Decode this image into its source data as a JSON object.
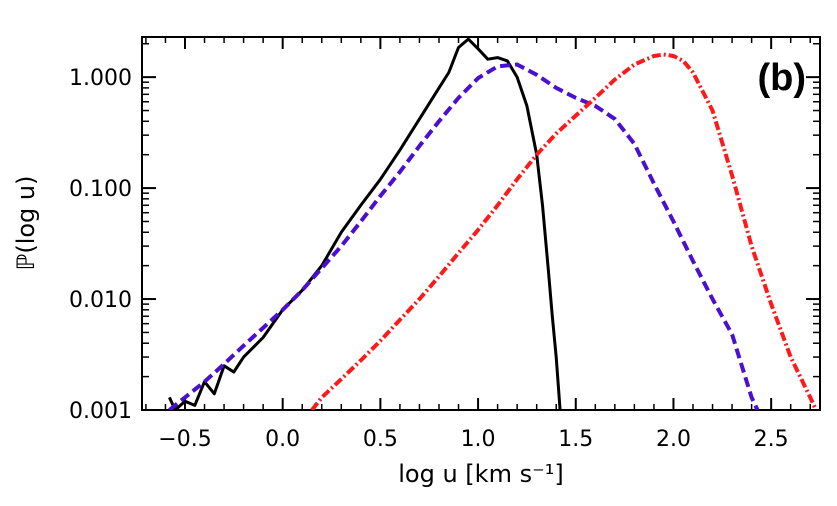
{
  "chart_data": {
    "type": "line",
    "title": "",
    "panel_label": "(b)",
    "xlabel": "log u [km s⁻¹]",
    "ylabel": "ℙ(log u)",
    "xlim": [
      -0.72,
      2.75
    ],
    "ylim": [
      0.001,
      2.3
    ],
    "yscale": "log",
    "xticks": [
      -0.5,
      0.0,
      0.5,
      1.0,
      1.5,
      2.0,
      2.5
    ],
    "xtick_labels": [
      "−0.5",
      "0.0",
      "0.5",
      "1.0",
      "1.5",
      "2.0",
      "2.5"
    ],
    "yticks": [
      0.001,
      0.01,
      0.1,
      1.0
    ],
    "ytick_labels": [
      "0.001",
      "0.010",
      "0.100",
      "1.000"
    ],
    "series": [
      {
        "name": "solid-black",
        "color": "#000000",
        "style": "solid",
        "x": [
          -0.58,
          -0.55,
          -0.5,
          -0.45,
          -0.4,
          -0.35,
          -0.3,
          -0.25,
          -0.2,
          -0.1,
          0.0,
          0.1,
          0.2,
          0.3,
          0.4,
          0.5,
          0.6,
          0.7,
          0.8,
          0.85,
          0.9,
          0.95,
          1.0,
          1.05,
          1.1,
          1.15,
          1.2,
          1.25,
          1.3,
          1.33,
          1.36,
          1.38,
          1.4,
          1.42
        ],
        "y": [
          0.0013,
          0.001,
          0.0012,
          0.0011,
          0.0018,
          0.0014,
          0.0025,
          0.0022,
          0.003,
          0.0045,
          0.008,
          0.012,
          0.02,
          0.04,
          0.07,
          0.12,
          0.22,
          0.42,
          0.8,
          1.1,
          1.85,
          2.2,
          1.8,
          1.45,
          1.5,
          1.4,
          1.0,
          0.55,
          0.2,
          0.07,
          0.018,
          0.007,
          0.003,
          0.001
        ]
      },
      {
        "name": "dashed-blue",
        "color": "#4a0fd0",
        "style": "dashed",
        "x": [
          -0.58,
          -0.5,
          -0.4,
          -0.3,
          -0.2,
          -0.1,
          0.0,
          0.1,
          0.2,
          0.3,
          0.4,
          0.5,
          0.6,
          0.7,
          0.8,
          0.9,
          1.0,
          1.1,
          1.2,
          1.3,
          1.4,
          1.5,
          1.6,
          1.7,
          1.8,
          1.9,
          2.0,
          2.1,
          2.2,
          2.3,
          2.35,
          2.4,
          2.43
        ],
        "y": [
          0.001,
          0.0013,
          0.0018,
          0.0026,
          0.0038,
          0.0055,
          0.008,
          0.012,
          0.019,
          0.03,
          0.05,
          0.085,
          0.14,
          0.24,
          0.4,
          0.65,
          0.98,
          1.25,
          1.3,
          1.05,
          0.8,
          0.65,
          0.55,
          0.42,
          0.25,
          0.11,
          0.05,
          0.022,
          0.01,
          0.0048,
          0.0025,
          0.0013,
          0.001
        ]
      },
      {
        "name": "dash-dot-red",
        "color": "#ff1a1a",
        "style": "dashdot",
        "x": [
          0.15,
          0.2,
          0.3,
          0.4,
          0.5,
          0.6,
          0.7,
          0.8,
          0.9,
          1.0,
          1.1,
          1.2,
          1.3,
          1.4,
          1.5,
          1.6,
          1.7,
          1.8,
          1.9,
          1.95,
          2.0,
          2.05,
          2.1,
          2.2,
          2.3,
          2.4,
          2.5,
          2.6,
          2.7,
          2.73
        ],
        "y": [
          0.001,
          0.0013,
          0.0019,
          0.0028,
          0.0042,
          0.0065,
          0.01,
          0.016,
          0.026,
          0.042,
          0.07,
          0.12,
          0.2,
          0.31,
          0.45,
          0.65,
          0.95,
          1.3,
          1.55,
          1.6,
          1.55,
          1.4,
          1.1,
          0.5,
          0.13,
          0.03,
          0.009,
          0.003,
          0.0013,
          0.001
        ]
      }
    ]
  }
}
